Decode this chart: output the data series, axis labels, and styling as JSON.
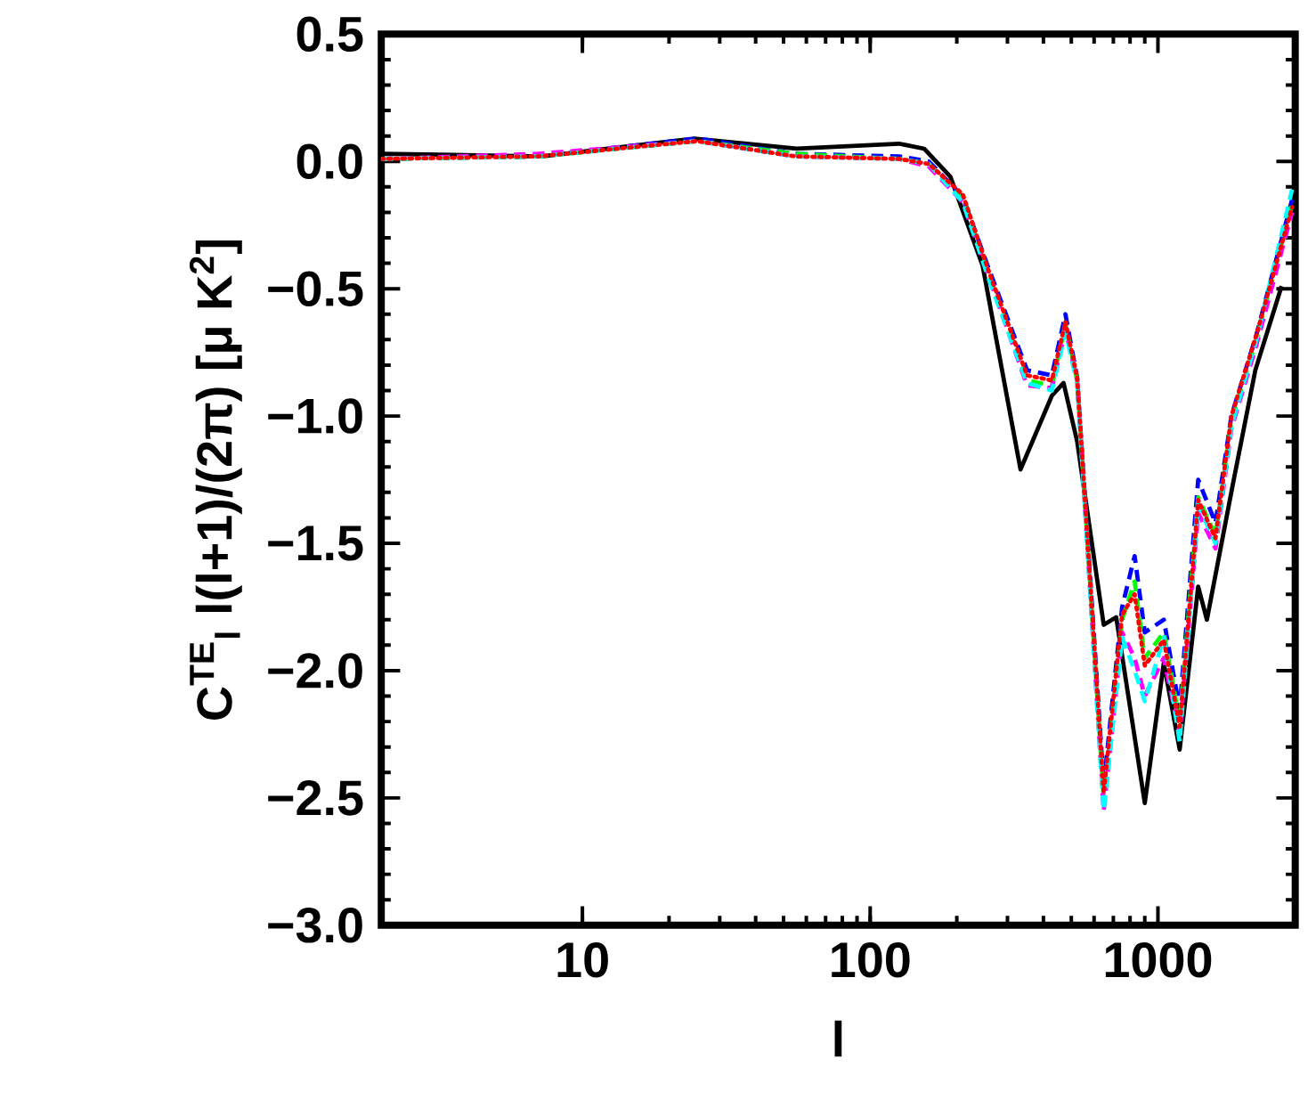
{
  "chart_data": {
    "type": "line",
    "xlabel": "l",
    "ylabel": "C$^{TE}$$_{l}$ l(l+1)/(2π) [μ K$^{2}$]",
    "log": "x",
    "xlim": [
      2,
      3000
    ],
    "xticks": [
      10,
      100,
      1000
    ],
    "ylim": [
      -3.0,
      0.5
    ],
    "yticks": [
      {
        "value": 0.5,
        "label": "0.5"
      },
      {
        "value": 0,
        "label": "0.0"
      },
      {
        "value": -0.5,
        "label": "−0.5"
      },
      {
        "value": -1.0,
        "label": "−1.0"
      },
      {
        "value": -1.5,
        "label": "−1.5"
      },
      {
        "value": -2.0,
        "label": "−2.0"
      },
      {
        "value": -2.5,
        "label": "−2.5"
      },
      {
        "value": -3.0,
        "label": "−3.0"
      }
    ],
    "series": [
      {
        "color": "#000000",
        "line_style": "solid",
        "x": [
          2,
          7.2,
          24.5,
          55.6,
          126,
          154,
          190,
          246,
          333,
          428,
          470,
          524,
          648,
          716,
          900,
          1048,
          1190,
          1380,
          1480,
          1820,
          2180,
          2690
        ],
        "values": [
          0.03,
          0.02,
          0.09,
          0.05,
          0.07,
          0.05,
          -0.06,
          -0.41,
          -1.21,
          -0.92,
          -0.87,
          -1.1,
          -1.82,
          -1.79,
          -2.52,
          -1.97,
          -2.31,
          -1.67,
          -1.8,
          -1.27,
          -0.82,
          -0.49
        ]
      },
      {
        "color": "#0000ff",
        "line_style": "dashed",
        "x": [
          2,
          7,
          25,
          55,
          126,
          160,
          210,
          258,
          351,
          428,
          477,
          524,
          648,
          751,
          830,
          900,
          1048,
          1190,
          1380,
          1585,
          1800,
          2200,
          2925
        ],
        "values": [
          0.01,
          0.02,
          0.09,
          0.03,
          0.02,
          0.0,
          -0.14,
          -0.42,
          -0.82,
          -0.84,
          -0.6,
          -0.85,
          -2.45,
          -1.75,
          -1.55,
          -1.85,
          -1.8,
          -2.15,
          -1.25,
          -1.42,
          -1.0,
          -0.68,
          -0.15
        ]
      },
      {
        "color": "#00ff00",
        "line_style": "dashed",
        "x": [
          2,
          7,
          25,
          55,
          126,
          160,
          210,
          258,
          351,
          428,
          477,
          524,
          648,
          751,
          830,
          900,
          1048,
          1190,
          1380,
          1585,
          1800,
          2200,
          2925
        ],
        "values": [
          0.01,
          0.02,
          0.08,
          0.03,
          0.01,
          -0.01,
          -0.15,
          -0.44,
          -0.86,
          -0.88,
          -0.64,
          -0.86,
          -2.5,
          -1.8,
          -1.65,
          -1.95,
          -1.85,
          -2.2,
          -1.32,
          -1.47,
          -1.02,
          -0.7,
          -0.17
        ]
      },
      {
        "color": "#ff00ff",
        "line_style": "dashed",
        "x": [
          2,
          7,
          25,
          55,
          126,
          160,
          210,
          258,
          351,
          428,
          477,
          524,
          648,
          751,
          830,
          900,
          1048,
          1190,
          1380,
          1585,
          1800,
          2200,
          2925
        ],
        "values": [
          0.01,
          0.03,
          0.08,
          0.02,
          0.01,
          -0.02,
          -0.16,
          -0.45,
          -0.88,
          -0.89,
          -0.66,
          -0.86,
          -2.55,
          -1.85,
          -1.95,
          -2.1,
          -1.95,
          -2.25,
          -1.38,
          -1.52,
          -1.05,
          -0.72,
          -0.2
        ]
      },
      {
        "color": "#00ffff",
        "line_style": "dashed",
        "x": [
          2,
          7,
          25,
          55,
          126,
          160,
          210,
          258,
          351,
          428,
          477,
          524,
          648,
          751,
          830,
          900,
          1048,
          1190,
          1380,
          1585,
          1800,
          2200,
          2925
        ],
        "values": [
          0.01,
          0.02,
          0.08,
          0.02,
          0.01,
          -0.01,
          -0.16,
          -0.46,
          -0.87,
          -0.9,
          -0.67,
          -0.87,
          -2.55,
          -1.87,
          -2.0,
          -2.12,
          -1.87,
          -2.28,
          -1.35,
          -1.5,
          -1.04,
          -0.7,
          -0.11
        ]
      },
      {
        "color": "#ff0000",
        "line_style": "dotted",
        "x": [
          2,
          7,
          25,
          55,
          126,
          160,
          210,
          258,
          351,
          428,
          477,
          524,
          648,
          751,
          830,
          900,
          1048,
          1190,
          1380,
          1585,
          1800,
          2200,
          2925
        ],
        "values": [
          0.01,
          0.02,
          0.08,
          0.02,
          0.01,
          -0.01,
          -0.13,
          -0.43,
          -0.84,
          -0.86,
          -0.63,
          -0.85,
          -2.48,
          -1.78,
          -1.7,
          -1.98,
          -1.88,
          -2.22,
          -1.33,
          -1.48,
          -1.0,
          -0.68,
          -0.18
        ]
      }
    ]
  }
}
